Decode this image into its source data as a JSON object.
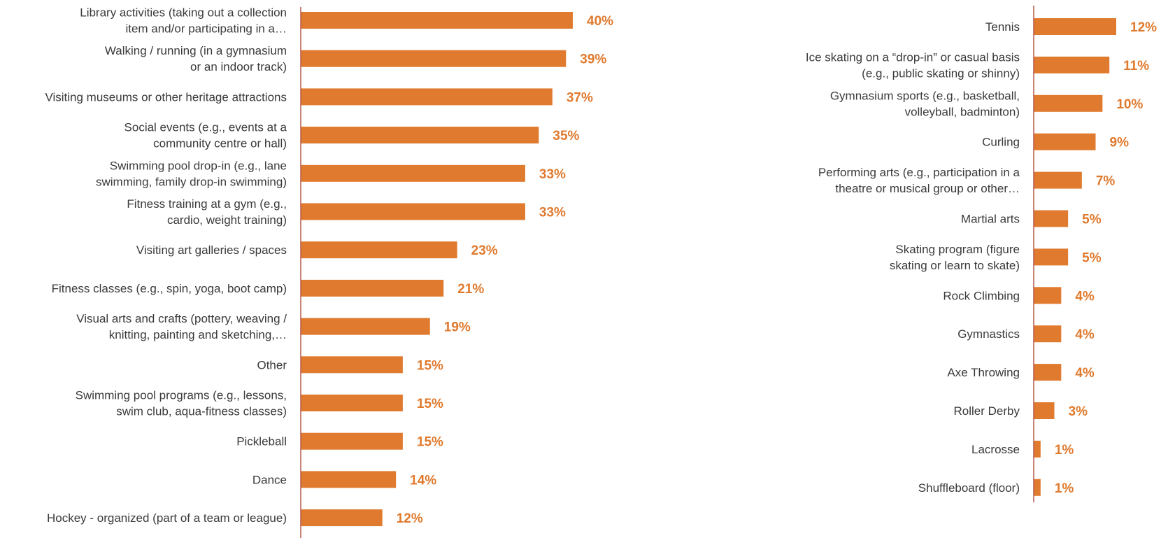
{
  "colors": {
    "bar": "#E07A2E",
    "axis": "#B55A4A",
    "label": "#3A3A3A"
  },
  "chart_data": [
    {
      "type": "bar",
      "orientation": "horizontal",
      "xlim": [
        0,
        40
      ],
      "grid": false,
      "categories": [
        [
          "Library activities (taking out a collection",
          "item and/or participating in a…"
        ],
        [
          "Walking / running (in a gymnasium",
          "or an indoor track)"
        ],
        [
          "Visiting museums or other heritage attractions"
        ],
        [
          "Social events (e.g., events at a",
          "community centre or hall)"
        ],
        [
          "Swimming pool drop-in (e.g., lane",
          "swimming, family drop-in swimming)"
        ],
        [
          "Fitness training at a gym (e.g.,",
          "cardio, weight training)"
        ],
        [
          "Visiting art galleries / spaces"
        ],
        [
          "Fitness classes (e.g., spin, yoga, boot camp)"
        ],
        [
          "Visual arts and crafts (pottery, weaving /",
          "knitting, painting and sketching,…"
        ],
        [
          "Other"
        ],
        [
          "Swimming pool programs (e.g., lessons,",
          "swim club, aqua-fitness classes)"
        ],
        [
          "Pickleball"
        ],
        [
          "Dance"
        ],
        [
          "Hockey - organized (part of a team or league)"
        ]
      ],
      "values": [
        40,
        39,
        37,
        35,
        33,
        33,
        23,
        21,
        19,
        15,
        15,
        15,
        14,
        12
      ],
      "value_labels": [
        "40%",
        "39%",
        "37%",
        "35%",
        "33%",
        "33%",
        "23%",
        "21%",
        "19%",
        "15%",
        "15%",
        "15%",
        "14%",
        "12%"
      ]
    },
    {
      "type": "bar",
      "orientation": "horizontal",
      "xlim": [
        0,
        12
      ],
      "grid": false,
      "categories": [
        [
          "Tennis"
        ],
        [
          "Ice skating on a “drop-in” or casual basis",
          "(e.g., public skating or shinny)"
        ],
        [
          "Gymnasium sports (e.g., basketball,",
          "volleyball, badminton)"
        ],
        [
          "Curling"
        ],
        [
          "Performing arts (e.g., participation in a",
          "theatre or musical group or other…"
        ],
        [
          "Martial arts"
        ],
        [
          "Skating program (figure",
          "skating or learn to skate)"
        ],
        [
          "Rock Climbing"
        ],
        [
          "Gymnastics"
        ],
        [
          "Axe Throwing"
        ],
        [
          "Roller Derby"
        ],
        [
          "Lacrosse"
        ],
        [
          "Shuffleboard (floor)"
        ]
      ],
      "values": [
        12,
        11,
        10,
        9,
        7,
        5,
        5,
        4,
        4,
        4,
        3,
        1,
        1
      ],
      "value_labels": [
        "12%",
        "11%",
        "10%",
        "9%",
        "7%",
        "5%",
        "5%",
        "4%",
        "4%",
        "4%",
        "3%",
        "1%",
        "1%"
      ]
    }
  ]
}
